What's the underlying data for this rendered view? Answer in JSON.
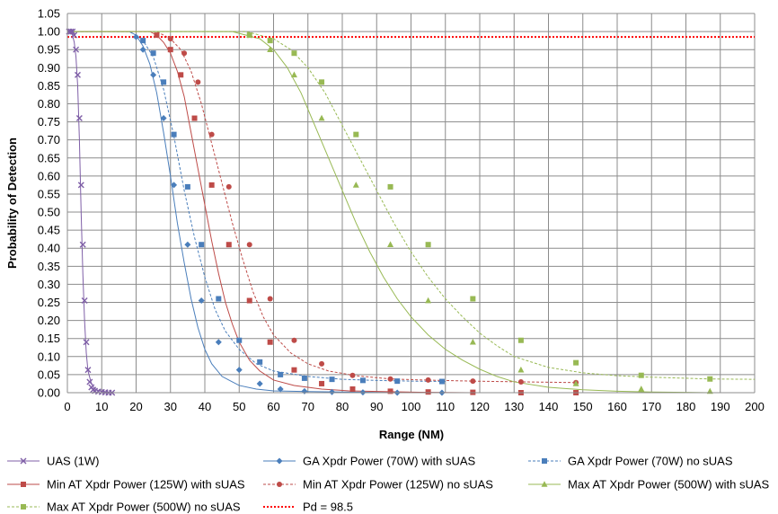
{
  "chart_data": {
    "type": "line",
    "title": "",
    "xlabel": "Range (NM)",
    "ylabel": "Probability of Detection",
    "xlim": [
      0,
      200
    ],
    "ylim": [
      0,
      1.05
    ],
    "x_ticks": [
      "0",
      "10",
      "20",
      "30",
      "40",
      "50",
      "60",
      "70",
      "80",
      "90",
      "100",
      "110",
      "120",
      "130",
      "140",
      "150",
      "160",
      "170",
      "180",
      "190",
      "200"
    ],
    "y_ticks": [
      "0.00",
      "0.05",
      "0.10",
      "0.15",
      "0.20",
      "0.25",
      "0.30",
      "0.35",
      "0.40",
      "0.45",
      "0.50",
      "0.55",
      "0.60",
      "0.65",
      "0.70",
      "0.75",
      "0.80",
      "0.85",
      "0.90",
      "0.95",
      "1.00",
      "1.05"
    ],
    "grid": true,
    "legend_position": "bottom",
    "series": [
      {
        "name": "UAS (1W)",
        "color": "#7f5fa7",
        "marker": "x",
        "dash": false,
        "curve": [
          [
            0,
            1.0
          ],
          [
            1,
            1.0
          ],
          [
            1.5,
            0.99
          ],
          [
            2,
            0.97
          ],
          [
            2.5,
            0.93
          ],
          [
            3,
            0.85
          ],
          [
            3.5,
            0.7
          ],
          [
            4,
            0.5
          ],
          [
            4.5,
            0.33
          ],
          [
            5,
            0.2
          ],
          [
            5.5,
            0.11
          ],
          [
            6,
            0.06
          ],
          [
            7,
            0.025
          ],
          [
            8,
            0.01
          ],
          [
            10,
            0.003
          ],
          [
            12,
            0.001
          ],
          [
            14,
            0.0
          ]
        ],
        "points": [
          [
            0.5,
            1.0
          ],
          [
            1,
            1.0
          ],
          [
            1.5,
            1.0
          ],
          [
            2,
            0.99
          ],
          [
            2.5,
            0.95
          ],
          [
            3,
            0.88
          ],
          [
            3.5,
            0.76
          ],
          [
            4,
            0.575
          ],
          [
            4.5,
            0.41
          ],
          [
            5,
            0.255
          ],
          [
            5.5,
            0.14
          ],
          [
            6,
            0.063
          ],
          [
            6.5,
            0.03
          ],
          [
            7,
            0.015
          ],
          [
            7.5,
            0.008
          ],
          [
            8,
            0.005
          ],
          [
            9,
            0.003
          ],
          [
            10,
            0.002
          ],
          [
            11,
            0.001
          ],
          [
            12,
            0.0
          ],
          [
            13,
            0.0
          ]
        ]
      },
      {
        "name": "GA Xpdr Power (70W) with sUAS",
        "color": "#4a7ebb",
        "marker": "diamond",
        "dash": false,
        "curve": [
          [
            0,
            1.0
          ],
          [
            18,
            1.0
          ],
          [
            20,
            0.99
          ],
          [
            22,
            0.96
          ],
          [
            24,
            0.91
          ],
          [
            26,
            0.83
          ],
          [
            28,
            0.72
          ],
          [
            30,
            0.6
          ],
          [
            32,
            0.47
          ],
          [
            34,
            0.36
          ],
          [
            36,
            0.26
          ],
          [
            38,
            0.18
          ],
          [
            40,
            0.12
          ],
          [
            42,
            0.08
          ],
          [
            45,
            0.045
          ],
          [
            50,
            0.02
          ],
          [
            55,
            0.01
          ],
          [
            60,
            0.005
          ],
          [
            70,
            0.003
          ],
          [
            80,
            0.002
          ],
          [
            90,
            0.001
          ],
          [
            100,
            0.001
          ],
          [
            110,
            0.0
          ]
        ],
        "points": [
          [
            20,
            0.985
          ],
          [
            22,
            0.95
          ],
          [
            25,
            0.88
          ],
          [
            28,
            0.76
          ],
          [
            31,
            0.575
          ],
          [
            35,
            0.41
          ],
          [
            39,
            0.255
          ],
          [
            44,
            0.14
          ],
          [
            50,
            0.063
          ],
          [
            56,
            0.025
          ],
          [
            62,
            0.01
          ],
          [
            69,
            0.004
          ],
          [
            77,
            0.002
          ],
          [
            86,
            0.001
          ],
          [
            96,
            0.0
          ],
          [
            109,
            0.0
          ]
        ]
      },
      {
        "name": "GA Xpdr Power (70W) no sUAS",
        "color": "#4a7ebb",
        "marker": "square",
        "dash": true,
        "curve": [
          [
            0,
            1.0
          ],
          [
            18,
            1.0
          ],
          [
            20,
            0.99
          ],
          [
            22,
            0.975
          ],
          [
            25,
            0.93
          ],
          [
            28,
            0.84
          ],
          [
            31,
            0.71
          ],
          [
            34,
            0.56
          ],
          [
            37,
            0.43
          ],
          [
            40,
            0.32
          ],
          [
            43,
            0.23
          ],
          [
            46,
            0.17
          ],
          [
            50,
            0.12
          ],
          [
            55,
            0.08
          ],
          [
            60,
            0.06
          ],
          [
            70,
            0.045
          ],
          [
            80,
            0.037
          ],
          [
            90,
            0.034
          ],
          [
            100,
            0.032
          ],
          [
            110,
            0.031
          ]
        ],
        "points": [
          [
            22,
            0.975
          ],
          [
            25,
            0.94
          ],
          [
            28,
            0.86
          ],
          [
            31,
            0.715
          ],
          [
            35,
            0.57
          ],
          [
            39,
            0.41
          ],
          [
            44,
            0.26
          ],
          [
            50,
            0.145
          ],
          [
            56,
            0.085
          ],
          [
            62,
            0.05
          ],
          [
            69,
            0.04
          ],
          [
            77,
            0.037
          ],
          [
            86,
            0.034
          ],
          [
            96,
            0.032
          ],
          [
            109,
            0.031
          ]
        ]
      },
      {
        "name": "Min AT Xpdr Power (125W) with sUAS",
        "color": "#be4b48",
        "marker": "square",
        "dash": false,
        "curve": [
          [
            0,
            1.0
          ],
          [
            24,
            1.0
          ],
          [
            26,
            0.99
          ],
          [
            28,
            0.97
          ],
          [
            30,
            0.94
          ],
          [
            32,
            0.89
          ],
          [
            34,
            0.82
          ],
          [
            36,
            0.72
          ],
          [
            38,
            0.62
          ],
          [
            40,
            0.52
          ],
          [
            42,
            0.42
          ],
          [
            44,
            0.33
          ],
          [
            46,
            0.25
          ],
          [
            48,
            0.19
          ],
          [
            50,
            0.14
          ],
          [
            53,
            0.09
          ],
          [
            56,
            0.06
          ],
          [
            60,
            0.035
          ],
          [
            66,
            0.02
          ],
          [
            74,
            0.01
          ],
          [
            82,
            0.005
          ],
          [
            92,
            0.003
          ],
          [
            104,
            0.001
          ],
          [
            118,
            0.0
          ],
          [
            132,
            0.0
          ],
          [
            148,
            0.0
          ]
        ],
        "points": [
          [
            26,
            0.99
          ],
          [
            30,
            0.95
          ],
          [
            33,
            0.88
          ],
          [
            37,
            0.76
          ],
          [
            42,
            0.575
          ],
          [
            47,
            0.41
          ],
          [
            53,
            0.255
          ],
          [
            59,
            0.14
          ],
          [
            66,
            0.063
          ],
          [
            74,
            0.025
          ],
          [
            83,
            0.01
          ],
          [
            94,
            0.004
          ],
          [
            105,
            0.002
          ],
          [
            118,
            0.001
          ],
          [
            132,
            0.0
          ],
          [
            148,
            0.0
          ]
        ]
      },
      {
        "name": "Min AT Xpdr Power (125W) no sUAS",
        "color": "#be4b48",
        "marker": "circle",
        "dash": true,
        "curve": [
          [
            0,
            1.0
          ],
          [
            26,
            1.0
          ],
          [
            28,
            0.99
          ],
          [
            30,
            0.98
          ],
          [
            33,
            0.95
          ],
          [
            36,
            0.89
          ],
          [
            39,
            0.8
          ],
          [
            42,
            0.69
          ],
          [
            45,
            0.58
          ],
          [
            48,
            0.47
          ],
          [
            51,
            0.37
          ],
          [
            54,
            0.28
          ],
          [
            57,
            0.21
          ],
          [
            60,
            0.16
          ],
          [
            65,
            0.11
          ],
          [
            70,
            0.08
          ],
          [
            76,
            0.06
          ],
          [
            84,
            0.047
          ],
          [
            94,
            0.038
          ],
          [
            104,
            0.035
          ],
          [
            118,
            0.032
          ],
          [
            132,
            0.03
          ],
          [
            148,
            0.028
          ]
        ],
        "points": [
          [
            30,
            0.98
          ],
          [
            34,
            0.94
          ],
          [
            38,
            0.86
          ],
          [
            42,
            0.715
          ],
          [
            47,
            0.57
          ],
          [
            53,
            0.41
          ],
          [
            59,
            0.26
          ],
          [
            66,
            0.145
          ],
          [
            74,
            0.08
          ],
          [
            83,
            0.048
          ],
          [
            94,
            0.038
          ],
          [
            105,
            0.035
          ],
          [
            118,
            0.032
          ],
          [
            132,
            0.03
          ],
          [
            148,
            0.028
          ]
        ]
      },
      {
        "name": "Max AT Xpdr Power (500W) with sUAS",
        "color": "#98b954",
        "marker": "triangle",
        "dash": false,
        "curve": [
          [
            0,
            1.0
          ],
          [
            48,
            1.0
          ],
          [
            52,
            0.99
          ],
          [
            56,
            0.98
          ],
          [
            60,
            0.95
          ],
          [
            64,
            0.9
          ],
          [
            68,
            0.83
          ],
          [
            72,
            0.74
          ],
          [
            76,
            0.65
          ],
          [
            80,
            0.56
          ],
          [
            84,
            0.47
          ],
          [
            88,
            0.39
          ],
          [
            92,
            0.32
          ],
          [
            96,
            0.26
          ],
          [
            100,
            0.21
          ],
          [
            105,
            0.16
          ],
          [
            110,
            0.12
          ],
          [
            115,
            0.09
          ],
          [
            120,
            0.065
          ],
          [
            125,
            0.045
          ],
          [
            130,
            0.03
          ],
          [
            140,
            0.015
          ],
          [
            150,
            0.008
          ],
          [
            160,
            0.004
          ],
          [
            170,
            0.002
          ],
          [
            180,
            0.001
          ],
          [
            187,
            0.0
          ]
        ],
        "points": [
          [
            53,
            0.99
          ],
          [
            59,
            0.95
          ],
          [
            66,
            0.88
          ],
          [
            74,
            0.76
          ],
          [
            84,
            0.575
          ],
          [
            94,
            0.41
          ],
          [
            105,
            0.255
          ],
          [
            118,
            0.14
          ],
          [
            132,
            0.063
          ],
          [
            148,
            0.025
          ],
          [
            167,
            0.01
          ],
          [
            187,
            0.004
          ]
        ]
      },
      {
        "name": "Max AT Xpdr Power (500W) no sUAS",
        "color": "#98b954",
        "marker": "square",
        "dash": true,
        "curve": [
          [
            0,
            1.0
          ],
          [
            52,
            1.0
          ],
          [
            56,
            0.99
          ],
          [
            60,
            0.98
          ],
          [
            65,
            0.95
          ],
          [
            70,
            0.9
          ],
          [
            75,
            0.83
          ],
          [
            80,
            0.74
          ],
          [
            85,
            0.65
          ],
          [
            90,
            0.56
          ],
          [
            95,
            0.47
          ],
          [
            100,
            0.39
          ],
          [
            105,
            0.32
          ],
          [
            110,
            0.26
          ],
          [
            115,
            0.21
          ],
          [
            120,
            0.165
          ],
          [
            125,
            0.13
          ],
          [
            130,
            0.1
          ],
          [
            140,
            0.07
          ],
          [
            150,
            0.055
          ],
          [
            160,
            0.047
          ],
          [
            170,
            0.043
          ],
          [
            180,
            0.04
          ],
          [
            187,
            0.038
          ],
          [
            200,
            0.037
          ]
        ],
        "points": [
          [
            53,
            0.99
          ],
          [
            59,
            0.975
          ],
          [
            66,
            0.94
          ],
          [
            74,
            0.86
          ],
          [
            84,
            0.715
          ],
          [
            94,
            0.57
          ],
          [
            105,
            0.41
          ],
          [
            118,
            0.26
          ],
          [
            132,
            0.145
          ],
          [
            148,
            0.083
          ],
          [
            167,
            0.048
          ],
          [
            187,
            0.038
          ]
        ]
      },
      {
        "name": "Pd = 98.5",
        "color": "#ff0000",
        "marker": "none",
        "dash": "dot",
        "curve": [
          [
            0,
            0.985
          ],
          [
            200,
            0.985
          ]
        ],
        "points": []
      }
    ]
  }
}
